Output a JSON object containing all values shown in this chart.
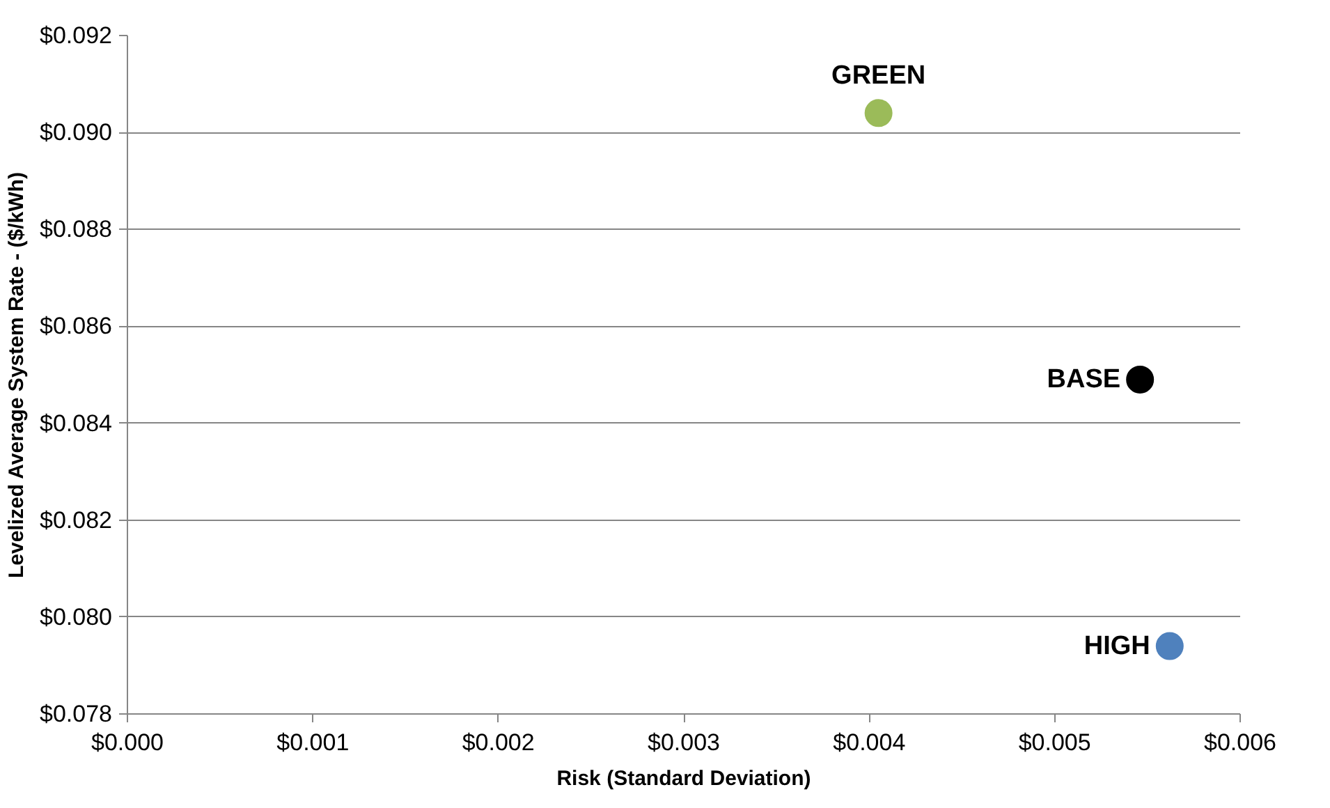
{
  "chart_data": {
    "type": "scatter",
    "xlabel": "Risk (Standard Deviation)",
    "ylabel": "Levelized Average System Rate - ($/kWh)",
    "series": [
      {
        "name": "GREEN",
        "color": "#9bbb59",
        "x": [
          0.00405
        ],
        "values": [
          0.0904
        ]
      },
      {
        "name": "BASE",
        "color": "#000000",
        "x": [
          0.00546
        ],
        "values": [
          0.0849
        ]
      },
      {
        "name": "HIGH",
        "color": "#4f81bd",
        "x": [
          0.00562
        ],
        "values": [
          0.0794
        ]
      }
    ],
    "xlim": [
      0,
      0.006
    ],
    "ylim": [
      0.078,
      0.092
    ],
    "xticks": [
      {
        "value": 0,
        "label": "$0.000"
      },
      {
        "value": 0.001,
        "label": "$0.001"
      },
      {
        "value": 0.002,
        "label": "$0.002"
      },
      {
        "value": 0.003,
        "label": "$0.003"
      },
      {
        "value": 0.004,
        "label": "$0.004"
      },
      {
        "value": 0.005,
        "label": "$0.005"
      },
      {
        "value": 0.006,
        "label": "$0.006"
      }
    ],
    "yticks": [
      {
        "value": 0.078,
        "label": "$0.078"
      },
      {
        "value": 0.08,
        "label": "$0.080"
      },
      {
        "value": 0.082,
        "label": "$0.082"
      },
      {
        "value": 0.084,
        "label": "$0.084"
      },
      {
        "value": 0.086,
        "label": "$0.086"
      },
      {
        "value": 0.088,
        "label": "$0.088"
      },
      {
        "value": 0.09,
        "label": "$0.090"
      },
      {
        "value": 0.092,
        "label": "$0.092"
      }
    ],
    "grid": "y",
    "marker": "circle"
  }
}
